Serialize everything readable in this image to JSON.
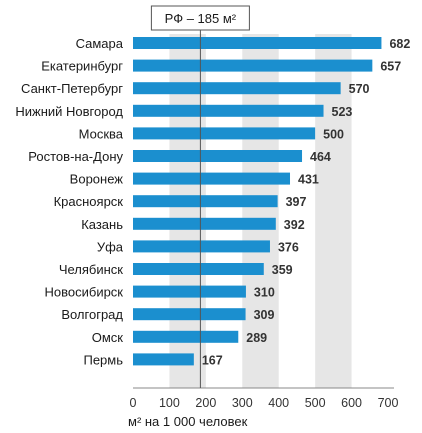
{
  "colors": {
    "bar": "#1b8fcf",
    "grid_band": "#e6e6e6",
    "axis": "#555555",
    "text": "#1a1a1a",
    "reference_line": "#555555"
  },
  "chart_data": {
    "type": "bar",
    "orientation": "horizontal",
    "categories": [
      "Самара",
      "Екатеринбург",
      "Санкт-Петербург",
      "Нижний Новгород",
      "Москва",
      "Ростов-на-Дону",
      "Воронеж",
      "Красноярск",
      "Казань",
      "Уфа",
      "Челябинск",
      "Новосибирск",
      "Волгоград",
      "Омск",
      "Пермь"
    ],
    "values": [
      682,
      657,
      570,
      523,
      500,
      464,
      431,
      397,
      392,
      376,
      359,
      310,
      309,
      289,
      167
    ],
    "data_labels": [
      "682",
      "657",
      "570",
      "523",
      "500",
      "464",
      "431",
      "397",
      "392",
      "376",
      "359",
      "310",
      "309",
      "289",
      "167"
    ],
    "xlabel": "м² на 1 000 человек",
    "xlim": [
      0,
      700
    ],
    "xticks": [
      0,
      100,
      200,
      300,
      400,
      500,
      600,
      700
    ],
    "xtick_labels": [
      "0",
      "100",
      "200",
      "300",
      "400",
      "500",
      "600",
      "700"
    ],
    "grid": "alternating vertical bands",
    "reference_line": {
      "value": 185,
      "label": "РФ – 185 м²"
    }
  }
}
